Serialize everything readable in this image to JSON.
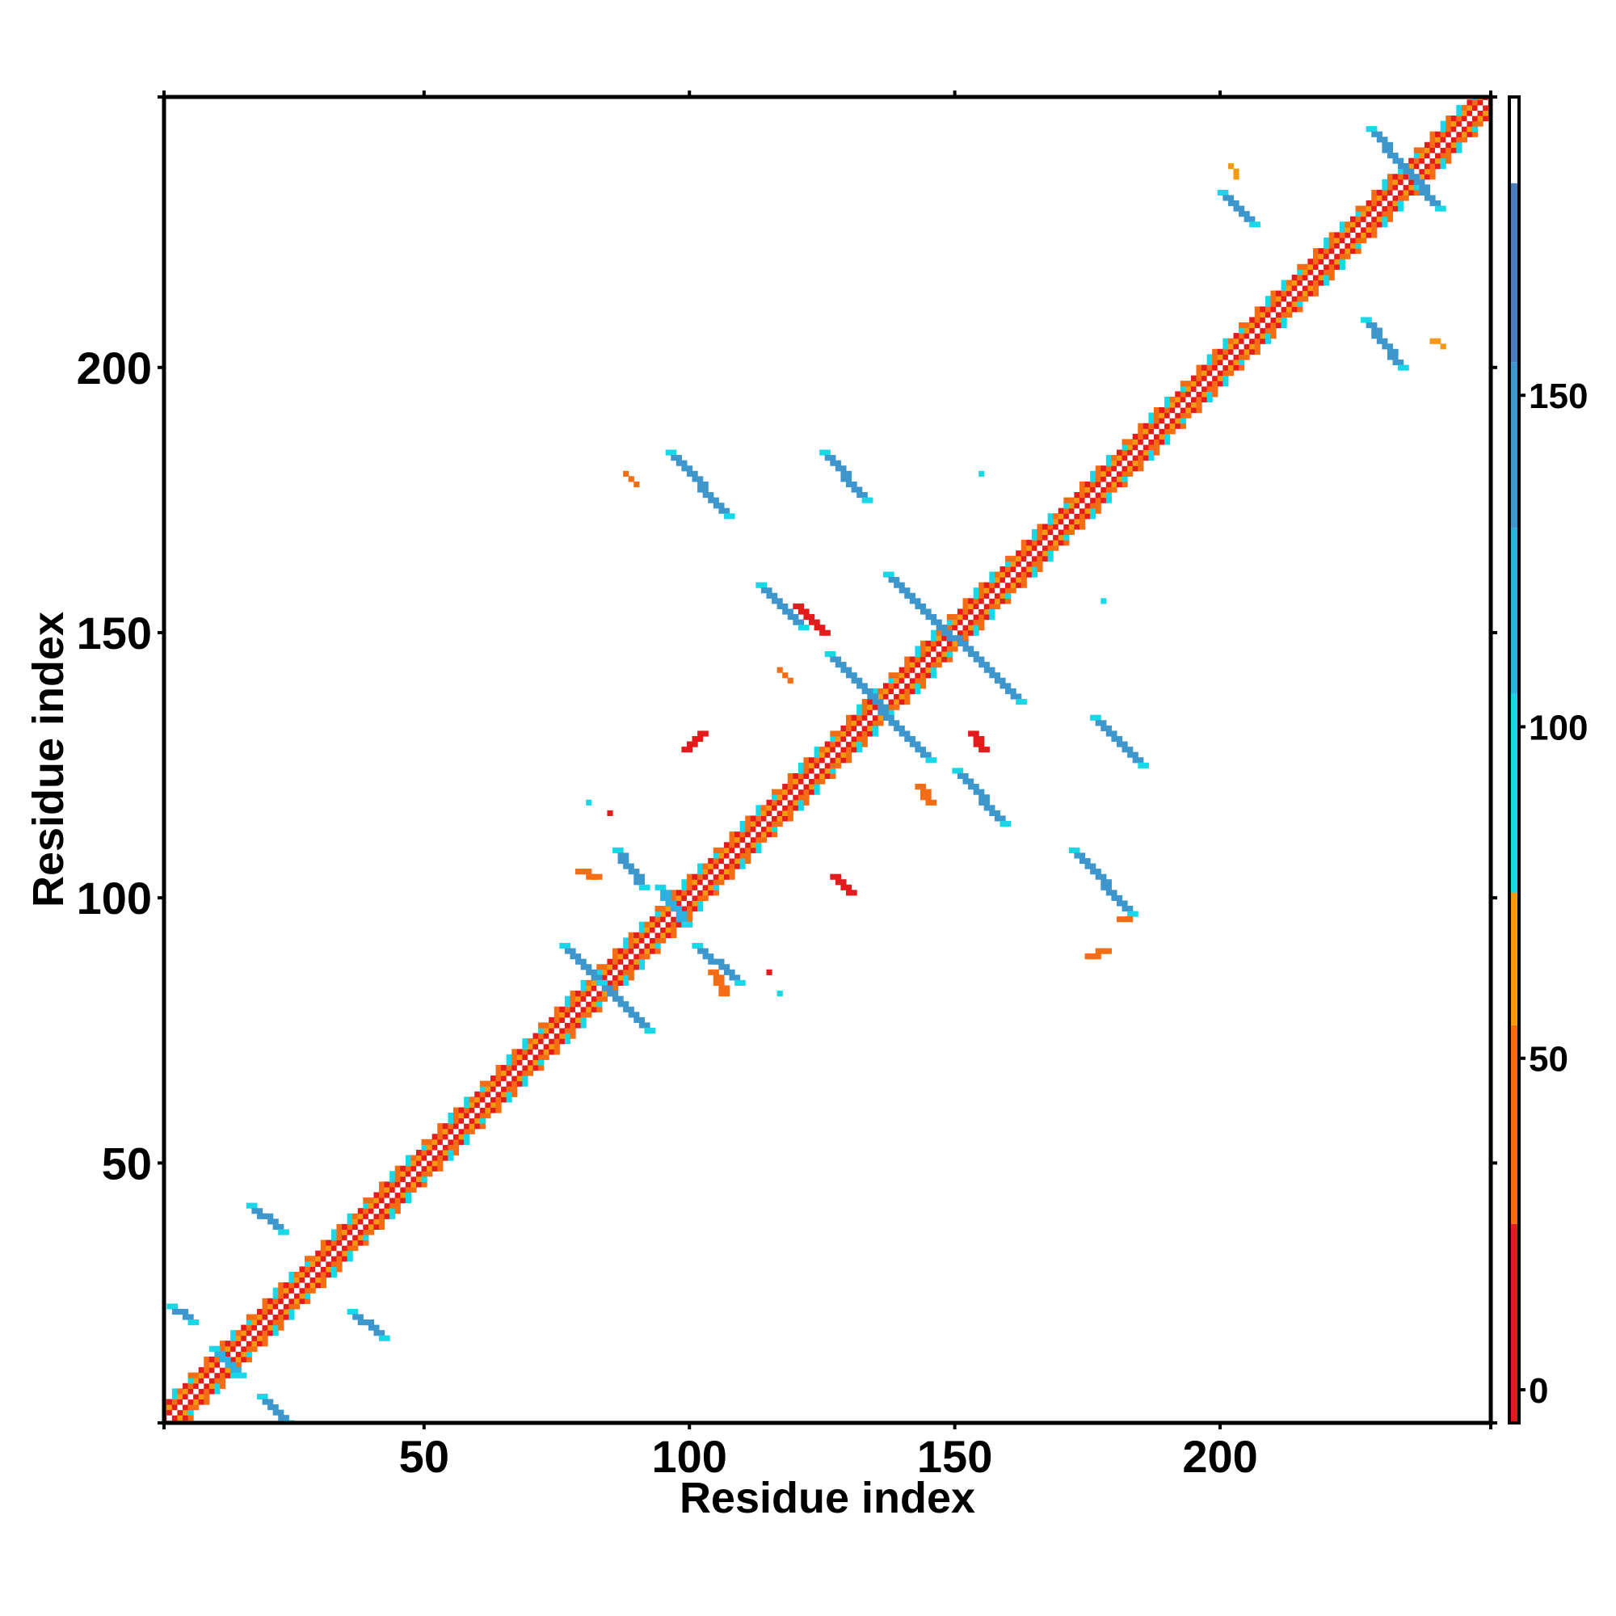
{
  "chart_data": {
    "type": "heatmap",
    "title": "",
    "xlabel": "Residue index",
    "ylabel": "Residue index",
    "xlim": [
      1,
      251
    ],
    "ylim": [
      1,
      251
    ],
    "x_ticks": [
      50,
      100,
      150,
      200
    ],
    "y_ticks": [
      50,
      100,
      150,
      200
    ],
    "grid": false,
    "colorbar": {
      "ticks": [
        0,
        50,
        100,
        150
      ],
      "range": [
        -5,
        195
      ],
      "bands": [
        {
          "from": -5,
          "to": 25,
          "color": "#e41a1c"
        },
        {
          "from": 25,
          "to": 55,
          "color": "#f46d14"
        },
        {
          "from": 55,
          "to": 75,
          "color": "#f59a10"
        },
        {
          "from": 75,
          "to": 105,
          "color": "#18d8e8"
        },
        {
          "from": 105,
          "to": 130,
          "color": "#2bb2e0"
        },
        {
          "from": 130,
          "to": 155,
          "color": "#3e97cc"
        },
        {
          "from": 155,
          "to": 182,
          "color": "#4a7fbf"
        },
        {
          "from": 182,
          "to": 195,
          "color": "#ffffff"
        }
      ]
    },
    "diagonal": {
      "start": 1,
      "end": 251
    },
    "contact_segments": [
      {
        "x0": 2,
        "y0": 23,
        "x1": 6,
        "y1": 20,
        "value": 140
      },
      {
        "x0": 10,
        "y0": 15,
        "x1": 15,
        "y1": 10,
        "value": 115
      },
      {
        "x0": 19,
        "y0": 6,
        "x1": 24,
        "y1": 1,
        "value": 140
      },
      {
        "x0": 17,
        "y0": 42,
        "x1": 23,
        "y1": 37,
        "value": 145
      },
      {
        "x0": 36,
        "y0": 22,
        "x1": 42,
        "y1": 17,
        "value": 140
      },
      {
        "x0": 76,
        "y0": 91,
        "x1": 85,
        "y1": 82,
        "value": 130
      },
      {
        "x0": 83,
        "y0": 84,
        "x1": 92,
        "y1": 75,
        "value": 130
      },
      {
        "x0": 86,
        "y0": 109,
        "x1": 91,
        "y1": 102,
        "value": 145
      },
      {
        "x0": 94,
        "y0": 102,
        "x1": 99,
        "y1": 95,
        "value": 120
      },
      {
        "x0": 101,
        "y0": 91,
        "x1": 109,
        "y1": 84,
        "value": 145
      },
      {
        "x0": 96,
        "y0": 184,
        "x1": 107,
        "y1": 172,
        "value": 150
      },
      {
        "x0": 125,
        "y0": 184,
        "x1": 133,
        "y1": 175,
        "value": 145
      },
      {
        "x0": 113,
        "y0": 159,
        "x1": 121,
        "y1": 151,
        "value": 140
      },
      {
        "x0": 137,
        "y0": 161,
        "x1": 162,
        "y1": 137,
        "value": 150
      },
      {
        "x0": 126,
        "y0": 146,
        "x1": 145,
        "y1": 126,
        "value": 150
      },
      {
        "x0": 150,
        "y0": 124,
        "x1": 159,
        "y1": 114,
        "value": 145
      },
      {
        "x0": 176,
        "y0": 134,
        "x1": 185,
        "y1": 125,
        "value": 145
      },
      {
        "x0": 172,
        "y0": 109,
        "x1": 183,
        "y1": 97,
        "value": 150
      },
      {
        "x0": 200,
        "y0": 233,
        "x1": 206,
        "y1": 227,
        "value": 145
      },
      {
        "x0": 228,
        "y0": 245,
        "x1": 241,
        "y1": 230,
        "value": 140
      },
      {
        "x0": 227,
        "y0": 209,
        "x1": 234,
        "y1": 200,
        "value": 150
      },
      {
        "x0": 202,
        "y0": 238,
        "x1": 203,
        "y1": 236,
        "value": 65
      },
      {
        "x0": 240,
        "y0": 205,
        "x1": 242,
        "y1": 204,
        "value": 65
      },
      {
        "x0": 88,
        "y0": 180,
        "x1": 90,
        "y1": 178,
        "value": 45
      },
      {
        "x0": 117,
        "y0": 143,
        "x1": 119,
        "y1": 141,
        "value": 45
      },
      {
        "x0": 120,
        "y0": 155,
        "x1": 125,
        "y1": 150,
        "value": 20
      },
      {
        "x0": 99,
        "y0": 128,
        "x1": 102,
        "y1": 131,
        "value": 20
      },
      {
        "x0": 153,
        "y0": 131,
        "x1": 155,
        "y1": 128,
        "value": 20
      },
      {
        "x0": 143,
        "y0": 121,
        "x1": 145,
        "y1": 118,
        "value": 45
      },
      {
        "x0": 127,
        "y0": 104,
        "x1": 130,
        "y1": 101,
        "value": 20
      },
      {
        "x0": 79,
        "y0": 105,
        "x1": 82,
        "y1": 104,
        "value": 45
      },
      {
        "x0": 104,
        "y0": 86,
        "x1": 106,
        "y1": 82,
        "value": 45
      },
      {
        "x0": 175,
        "y0": 89,
        "x1": 178,
        "y1": 90,
        "value": 45
      },
      {
        "x0": 181,
        "y0": 96,
        "x1": 183,
        "y1": 96,
        "value": 45
      },
      {
        "x0": 81,
        "y0": 118,
        "x1": 81,
        "y1": 118,
        "value": 120
      },
      {
        "x0": 155,
        "y0": 180,
        "x1": 155,
        "y1": 180,
        "value": 140
      },
      {
        "x0": 178,
        "y0": 156,
        "x1": 178,
        "y1": 156,
        "value": 120
      },
      {
        "x0": 117,
        "y0": 82,
        "x1": 117,
        "y1": 82,
        "value": 130
      },
      {
        "x0": 115,
        "y0": 86,
        "x1": 115,
        "y1": 86,
        "value": 20
      },
      {
        "x0": 85,
        "y0": 116,
        "x1": 85,
        "y1": 116,
        "value": 20
      }
    ]
  }
}
